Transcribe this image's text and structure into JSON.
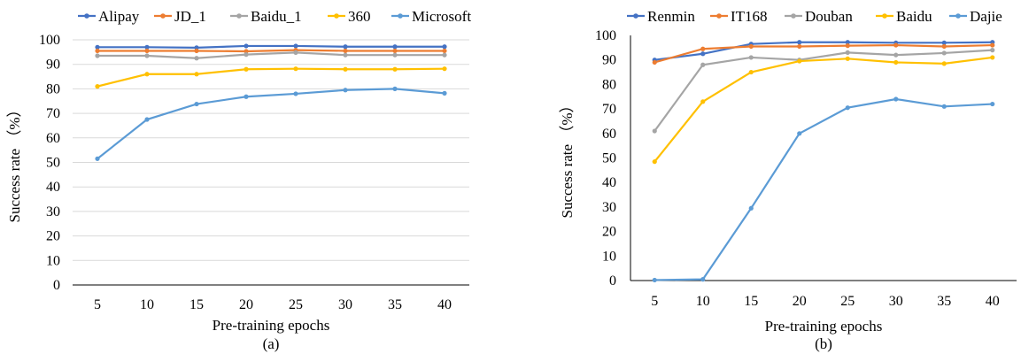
{
  "chart_data": [
    {
      "type": "line",
      "caption": "(a)",
      "x": [
        5,
        10,
        15,
        20,
        25,
        30,
        35,
        40
      ],
      "xlabel": "Pre-training epochs",
      "ylabel": "Success rate （%）",
      "ylim": [
        0,
        100
      ],
      "yticks": [
        0,
        10,
        20,
        30,
        40,
        50,
        60,
        70,
        80,
        90,
        100
      ],
      "grid": "horizontal",
      "legend": "top",
      "series": [
        {
          "name": "Alipay",
          "color": "#4472C4",
          "values": [
            97.0,
            97.0,
            96.8,
            97.5,
            97.5,
            97.2,
            97.2,
            97.2
          ]
        },
        {
          "name": "JD_1",
          "color": "#ED7D31",
          "values": [
            95.5,
            95.5,
            95.5,
            95.3,
            95.8,
            95.5,
            95.5,
            95.5
          ]
        },
        {
          "name": "Baidu_1",
          "color": "#A5A5A5",
          "values": [
            93.5,
            93.5,
            92.5,
            94.0,
            94.8,
            93.8,
            93.8,
            93.8
          ]
        },
        {
          "name": "360",
          "color": "#FFC000",
          "values": [
            81.0,
            86.0,
            86.0,
            88.0,
            88.2,
            88.0,
            88.0,
            88.2
          ]
        },
        {
          "name": "Microsoft",
          "color": "#5B9BD5",
          "values": [
            51.5,
            67.5,
            73.8,
            76.8,
            78.0,
            79.5,
            80.0,
            78.2
          ]
        }
      ]
    },
    {
      "type": "line",
      "caption": "(b)",
      "x": [
        5,
        10,
        15,
        20,
        25,
        30,
        35,
        40
      ],
      "xlabel": "Pre-training epochs",
      "ylabel": "Success rate （%）",
      "ylim": [
        0,
        100
      ],
      "yticks": [
        0,
        10,
        20,
        30,
        40,
        50,
        60,
        70,
        80,
        90,
        100
      ],
      "grid": "none",
      "legend": "top",
      "series": [
        {
          "name": "Renmin",
          "color": "#4472C4",
          "values": [
            90.0,
            92.5,
            96.5,
            97.2,
            97.2,
            97.0,
            97.0,
            97.2
          ]
        },
        {
          "name": "IT168",
          "color": "#ED7D31",
          "values": [
            89.0,
            94.5,
            95.5,
            95.5,
            95.8,
            96.0,
            95.5,
            96.0
          ]
        },
        {
          "name": "Douban",
          "color": "#A5A5A5",
          "values": [
            61.0,
            88.0,
            91.0,
            90.0,
            93.0,
            92.0,
            92.8,
            94.0
          ]
        },
        {
          "name": "Baidu",
          "color": "#FFC000",
          "values": [
            48.5,
            73.0,
            85.0,
            89.5,
            90.5,
            89.0,
            88.5,
            91.0
          ]
        },
        {
          "name": "Dajie",
          "color": "#5B9BD5",
          "values": [
            0.2,
            0.5,
            29.5,
            60.0,
            70.5,
            74.0,
            71.0,
            72.0
          ]
        }
      ]
    }
  ]
}
